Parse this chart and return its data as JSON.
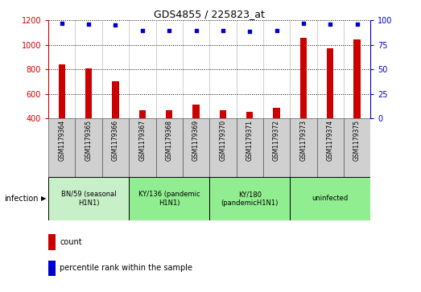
{
  "title": "GDS4855 / 225823_at",
  "samples": [
    "GSM1179364",
    "GSM1179365",
    "GSM1179366",
    "GSM1179367",
    "GSM1179368",
    "GSM1179369",
    "GSM1179370",
    "GSM1179371",
    "GSM1179372",
    "GSM1179373",
    "GSM1179374",
    "GSM1179375"
  ],
  "counts": [
    840,
    810,
    700,
    465,
    465,
    510,
    465,
    450,
    485,
    1055,
    975,
    1045
  ],
  "percentiles": [
    97,
    96,
    95,
    90,
    90,
    90,
    90,
    89,
    90,
    97,
    96,
    96
  ],
  "ylim_left": [
    400,
    1200
  ],
  "ylim_right": [
    0,
    100
  ],
  "yticks_left": [
    400,
    600,
    800,
    1000,
    1200
  ],
  "yticks_right": [
    0,
    25,
    50,
    75,
    100
  ],
  "groups": [
    {
      "label": "BN/59 (seasonal\nH1N1)",
      "start": 0,
      "end": 3,
      "color": "#c8f0c8"
    },
    {
      "label": "KY/136 (pandemic\nH1N1)",
      "start": 3,
      "end": 6,
      "color": "#90EE90"
    },
    {
      "label": "KY/180\n(pandemicH1N1)",
      "start": 6,
      "end": 9,
      "color": "#90EE90"
    },
    {
      "label": "uninfected",
      "start": 9,
      "end": 12,
      "color": "#90EE90"
    }
  ],
  "bar_color": "#CC0000",
  "dot_color": "#0000CC",
  "grid_color": "#000000",
  "left_axis_color": "#CC0000",
  "right_axis_color": "#0000CC",
  "sample_box_color": "#d0d0d0",
  "bg_color": "#ffffff",
  "infection_label": "infection"
}
